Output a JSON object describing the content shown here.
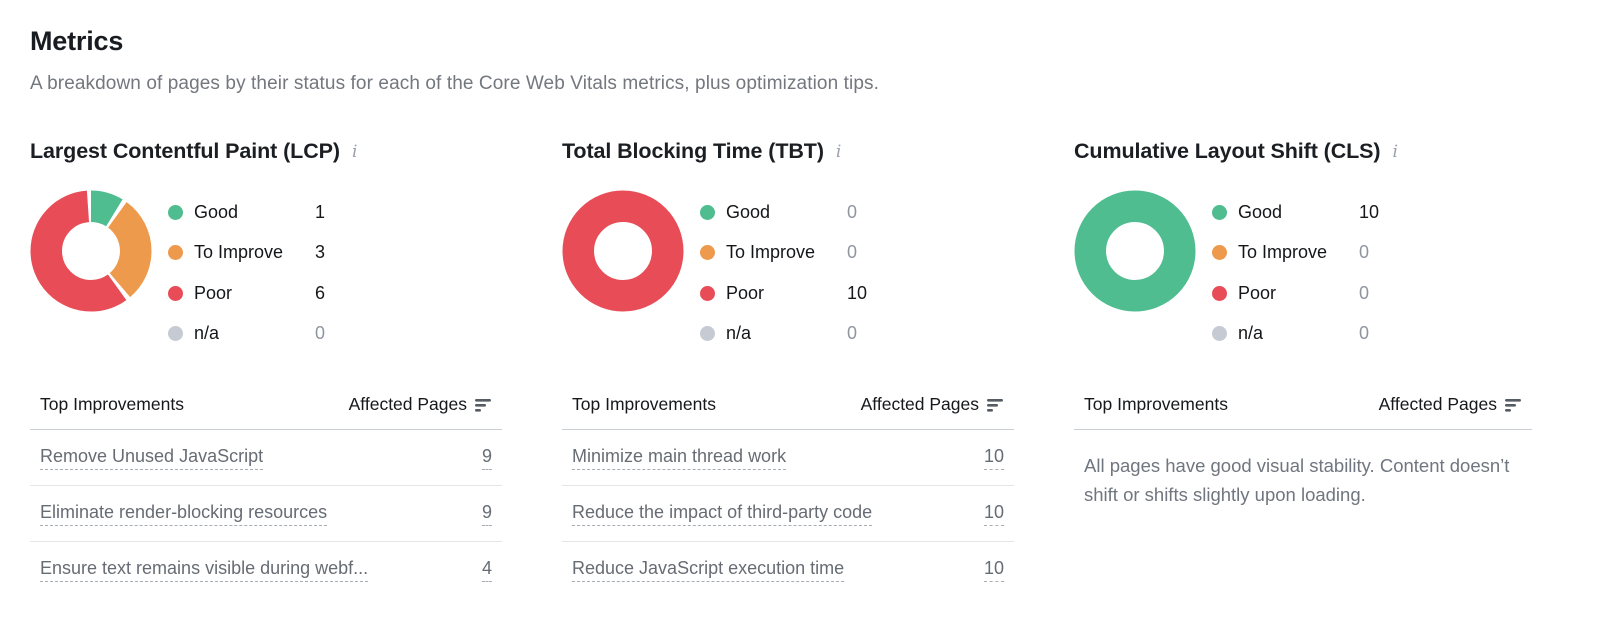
{
  "page": {
    "title": "Metrics",
    "subtitle": "A breakdown of pages by their status for each of the Core Web Vitals metrics, plus optimization tips."
  },
  "colors": {
    "good": "#4FBD90",
    "to_improve": "#EE9A4D",
    "poor": "#E84D57",
    "na": "#C6CBD3",
    "sort_icon": "#565c63"
  },
  "table": {
    "improvements_label": "Top Improvements",
    "affected_label": "Affected Pages"
  },
  "metrics": [
    {
      "title": "Largest Contentful Paint (LCP)",
      "legend": [
        {
          "label": "Good",
          "value": 1,
          "color": "good"
        },
        {
          "label": "To Improve",
          "value": 3,
          "color": "to_improve"
        },
        {
          "label": "Poor",
          "value": 6,
          "color": "poor"
        },
        {
          "label": "n/a",
          "value": 0,
          "color": "na"
        }
      ],
      "rows": [
        {
          "label": "Remove Unused JavaScript",
          "value": 9
        },
        {
          "label": "Eliminate render-blocking resources",
          "value": 9
        },
        {
          "label": "Ensure text remains visible during webf...",
          "value": 4
        }
      ]
    },
    {
      "title": "Total Blocking Time (TBT)",
      "legend": [
        {
          "label": "Good",
          "value": 0,
          "color": "good"
        },
        {
          "label": "To Improve",
          "value": 0,
          "color": "to_improve"
        },
        {
          "label": "Poor",
          "value": 10,
          "color": "poor"
        },
        {
          "label": "n/a",
          "value": 0,
          "color": "na"
        }
      ],
      "rows": [
        {
          "label": "Minimize main thread work",
          "value": 10
        },
        {
          "label": "Reduce the impact of third-party code",
          "value": 10
        },
        {
          "label": "Reduce JavaScript execution time",
          "value": 10
        }
      ]
    },
    {
      "title": "Cumulative Layout Shift (CLS)",
      "legend": [
        {
          "label": "Good",
          "value": 10,
          "color": "good"
        },
        {
          "label": "To Improve",
          "value": 0,
          "color": "to_improve"
        },
        {
          "label": "Poor",
          "value": 0,
          "color": "poor"
        },
        {
          "label": "n/a",
          "value": 0,
          "color": "na"
        }
      ],
      "rows": [],
      "message": "All pages have good visual stability. Content doesn’t shift or shifts slightly upon loading."
    }
  ],
  "chart_data": [
    {
      "type": "pie",
      "donut": true,
      "title": "Largest Contentful Paint (LCP)",
      "categories": [
        "Good",
        "To Improve",
        "Poor",
        "n/a"
      ],
      "values": [
        1,
        3,
        6,
        0
      ],
      "colors": [
        "#4FBD90",
        "#EE9A4D",
        "#E84D57",
        "#C6CBD3"
      ],
      "legend_position": "right"
    },
    {
      "type": "pie",
      "donut": true,
      "title": "Total Blocking Time (TBT)",
      "categories": [
        "Good",
        "To Improve",
        "Poor",
        "n/a"
      ],
      "values": [
        0,
        0,
        10,
        0
      ],
      "colors": [
        "#4FBD90",
        "#EE9A4D",
        "#E84D57",
        "#C6CBD3"
      ],
      "legend_position": "right"
    },
    {
      "type": "pie",
      "donut": true,
      "title": "Cumulative Layout Shift (CLS)",
      "categories": [
        "Good",
        "To Improve",
        "Poor",
        "n/a"
      ],
      "values": [
        10,
        0,
        0,
        0
      ],
      "colors": [
        "#4FBD90",
        "#EE9A4D",
        "#E84D57",
        "#C6CBD3"
      ],
      "legend_position": "right"
    }
  ]
}
